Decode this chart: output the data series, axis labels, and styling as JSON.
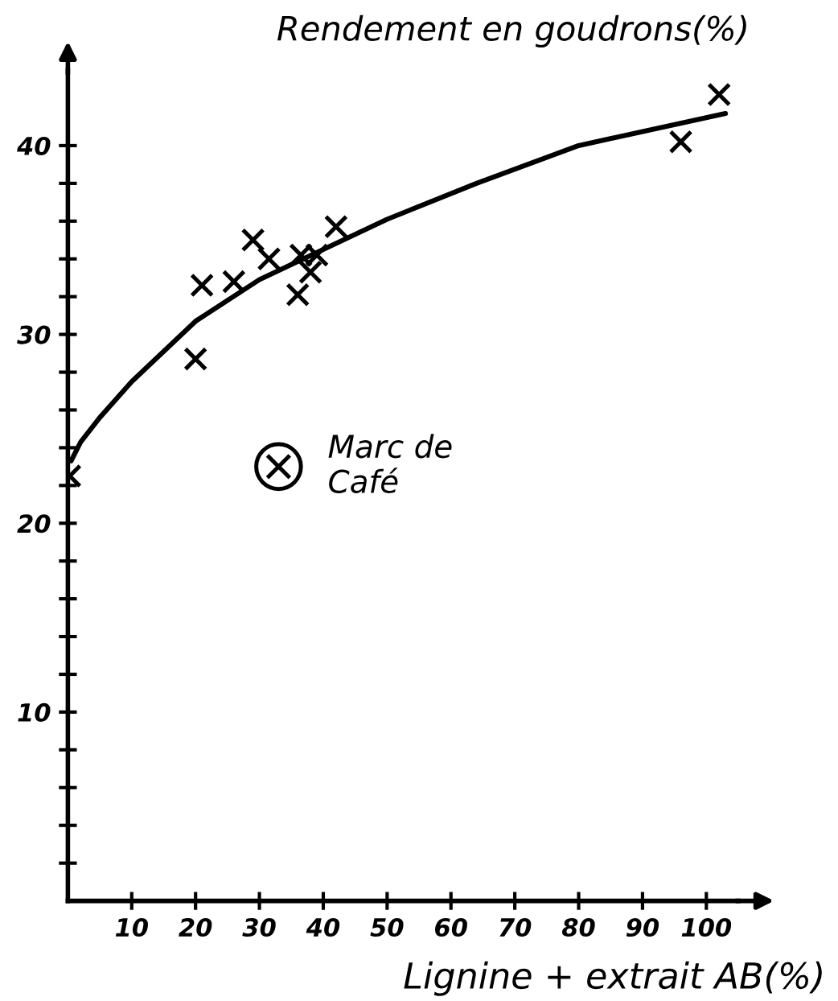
{
  "chart_data": {
    "type": "scatter",
    "xlabel": "Lignine + extrait AB(%)",
    "ylabel": "Rendement en goudrons(%)",
    "xlim": [
      0,
      105
    ],
    "ylim": [
      0,
      44
    ],
    "xticks": [
      10,
      20,
      30,
      40,
      50,
      60,
      70,
      80,
      90,
      100
    ],
    "yticks": [
      {
        "value": 2,
        "label": null
      },
      {
        "value": 4,
        "label": null
      },
      {
        "value": 6,
        "label": null
      },
      {
        "value": 8,
        "label": null
      },
      10,
      {
        "value": 12,
        "label": null
      },
      {
        "value": 14,
        "label": null
      },
      {
        "value": 16,
        "label": null
      },
      {
        "value": 18,
        "label": null
      },
      20,
      {
        "value": 22,
        "label": null
      },
      {
        "value": 24,
        "label": null
      },
      {
        "value": 26,
        "label": null
      },
      {
        "value": 28,
        "label": null
      },
      30,
      {
        "value": 32,
        "label": null
      },
      {
        "value": 34,
        "label": null
      },
      {
        "value": 36,
        "label": null
      },
      {
        "value": 38,
        "label": null
      },
      40
    ],
    "grid": false,
    "legend": false,
    "series": [
      {
        "marker": "cross",
        "color": "#000000",
        "x": [
          0.3,
          20,
          21,
          26,
          29,
          31.5,
          36,
          36.5,
          38,
          39,
          42,
          96,
          102
        ],
        "values": [
          22.5,
          28.7,
          32.6,
          32.8,
          35,
          34,
          32.1,
          34.2,
          33.3,
          34.2,
          35.7,
          40.2,
          42.7
        ]
      },
      {
        "marker": "circle",
        "color": "#000000",
        "x": [
          33
        ],
        "values": [
          23
        ]
      },
      {
        "type": "line",
        "color": "#000000",
        "line_style": "solid",
        "x": [
          0.5,
          2,
          5,
          10,
          20,
          30,
          40,
          50,
          64,
          80,
          103
        ],
        "values": [
          23.3,
          24.3,
          25.6,
          27.5,
          30.7,
          32.9,
          34.5,
          36.1,
          38,
          40,
          41.7
        ]
      }
    ],
    "annotations": [
      {
        "text": "Marc de\nCafé",
        "x": 33,
        "y": 23
      }
    ]
  }
}
